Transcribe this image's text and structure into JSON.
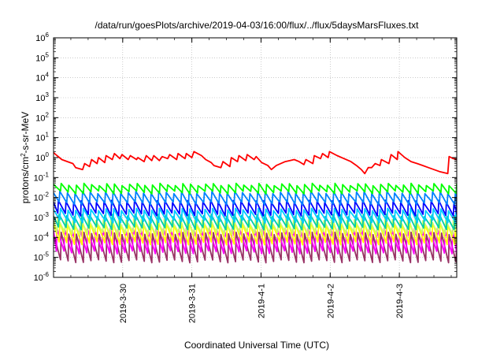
{
  "chart_data": {
    "type": "line",
    "title": "/data/run/goesPlots/archive/2019-04-03/16:00/flux/../flux/5daysMarsFluxes.txt",
    "xlabel": "Coordinated Universal Time (UTC)",
    "ylabel": {
      "base": "protons/cm",
      "sup": "2",
      "rest": "-s-sr-MeV"
    },
    "x_range_days": [
      0,
      5.83
    ],
    "x_ticks": [
      {
        "label": "2019-3-30",
        "day": 1.0
      },
      {
        "label": "2019-3-31",
        "day": 2.0
      },
      {
        "label": "2019-4-1",
        "day": 3.0
      },
      {
        "label": "2019-4-2",
        "day": 4.0
      },
      {
        "label": "2019-4-3",
        "day": 5.0
      }
    ],
    "y_scale": "log",
    "y_range_exp": [
      -6,
      6
    ],
    "y_ticks_exp": [
      -6,
      -5,
      -4,
      -3,
      -2,
      -1,
      0,
      1,
      2,
      3,
      4,
      5,
      6
    ],
    "grid": true,
    "red_series": {
      "color": "#ff0000",
      "points": [
        [
          0.0,
          0.25
        ],
        [
          0.05,
          0.1
        ],
        [
          0.12,
          -0.1
        ],
        [
          0.2,
          -0.2
        ],
        [
          0.28,
          -0.3
        ],
        [
          0.32,
          -0.5
        ],
        [
          0.42,
          -0.6
        ],
        [
          0.45,
          -0.3
        ],
        [
          0.52,
          -0.45
        ],
        [
          0.55,
          -0.1
        ],
        [
          0.63,
          -0.3
        ],
        [
          0.65,
          0.0
        ],
        [
          0.74,
          -0.25
        ],
        [
          0.76,
          0.1
        ],
        [
          0.85,
          -0.1
        ],
        [
          0.88,
          0.2
        ],
        [
          0.96,
          -0.05
        ],
        [
          0.99,
          0.15
        ],
        [
          1.08,
          -0.1
        ],
        [
          1.11,
          0.1
        ],
        [
          1.2,
          -0.1
        ],
        [
          1.22,
          0.0
        ],
        [
          1.31,
          -0.2
        ],
        [
          1.34,
          0.1
        ],
        [
          1.42,
          -0.15
        ],
        [
          1.45,
          0.1
        ],
        [
          1.53,
          -0.15
        ],
        [
          1.57,
          0.05
        ],
        [
          1.65,
          -0.05
        ],
        [
          1.68,
          0.15
        ],
        [
          1.78,
          -0.1
        ],
        [
          1.8,
          0.2
        ],
        [
          1.9,
          -0.05
        ],
        [
          1.92,
          0.2
        ],
        [
          2.0,
          0.0
        ],
        [
          2.03,
          0.3
        ],
        [
          2.14,
          0.1
        ],
        [
          2.2,
          -0.1
        ],
        [
          2.28,
          -0.25
        ],
        [
          2.32,
          -0.4
        ],
        [
          2.42,
          -0.5
        ],
        [
          2.45,
          -0.2
        ],
        [
          2.55,
          -0.45
        ],
        [
          2.57,
          0.0
        ],
        [
          2.66,
          -0.2
        ],
        [
          2.68,
          0.1
        ],
        [
          2.78,
          -0.15
        ],
        [
          2.8,
          0.15
        ],
        [
          2.9,
          -0.1
        ],
        [
          2.93,
          0.05
        ],
        [
          3.01,
          -0.25
        ],
        [
          3.1,
          -0.4
        ],
        [
          3.15,
          -0.6
        ],
        [
          3.22,
          -0.4
        ],
        [
          3.35,
          -0.2
        ],
        [
          3.42,
          -0.15
        ],
        [
          3.48,
          -0.1
        ],
        [
          3.55,
          -0.2
        ],
        [
          3.62,
          -0.35
        ],
        [
          3.65,
          -0.1
        ],
        [
          3.75,
          -0.3
        ],
        [
          3.77,
          0.1
        ],
        [
          3.86,
          -0.05
        ],
        [
          3.89,
          0.2
        ],
        [
          3.97,
          0.0
        ],
        [
          3.99,
          0.3
        ],
        [
          4.1,
          0.1
        ],
        [
          4.2,
          -0.05
        ],
        [
          4.3,
          -0.2
        ],
        [
          4.38,
          -0.4
        ],
        [
          4.45,
          -0.6
        ],
        [
          4.5,
          -0.8
        ],
        [
          4.55,
          -0.5
        ],
        [
          4.6,
          -0.5
        ],
        [
          4.65,
          -0.3
        ],
        [
          4.72,
          -0.4
        ],
        [
          4.74,
          -0.1
        ],
        [
          4.85,
          -0.3
        ],
        [
          4.88,
          0.15
        ],
        [
          4.97,
          -0.1
        ],
        [
          4.98,
          0.3
        ],
        [
          5.08,
          0.0
        ],
        [
          5.17,
          -0.2
        ],
        [
          5.26,
          -0.3
        ],
        [
          5.34,
          -0.4
        ],
        [
          5.42,
          -0.5
        ],
        [
          5.5,
          -0.6
        ],
        [
          5.58,
          -0.7
        ],
        [
          5.7,
          -0.8
        ],
        [
          5.72,
          0.05
        ],
        [
          5.78,
          -0.05
        ],
        [
          5.83,
          -0.1
        ]
      ]
    },
    "saw_series": [
      {
        "color": "#00ff00",
        "high": -1.35,
        "low": -1.75,
        "period": 0.11,
        "phase": 0.0,
        "trend": [
          0.0,
          0.0
        ]
      },
      {
        "color": "#0080ff",
        "high": -1.75,
        "low": -2.3,
        "period": 0.11,
        "phase": 0.02,
        "trend": [
          0.0,
          0.0
        ]
      },
      {
        "color": "#0000ff",
        "high": -2.2,
        "low": -2.85,
        "period": 0.11,
        "phase": 0.04,
        "trend": [
          0.0,
          0.0
        ]
      },
      {
        "color": "#00ccff",
        "high": -2.6,
        "low": -3.2,
        "period": 0.11,
        "phase": 0.01,
        "trend": [
          0.0,
          0.0
        ]
      },
      {
        "color": "#00ccaa",
        "high": -2.9,
        "low": -3.55,
        "period": 0.11,
        "phase": 0.03,
        "trend": [
          0.0,
          0.0
        ]
      },
      {
        "color": "#ccff66",
        "high": -3.1,
        "low": -3.8,
        "period": 0.11,
        "phase": 0.05,
        "trend": [
          0.0,
          0.0
        ]
      },
      {
        "color": "#ffff00",
        "high": -3.3,
        "low": -4.3,
        "period": 0.11,
        "phase": 0.02,
        "trend": [
          0.0,
          0.0
        ]
      },
      {
        "color": "#ff00ff",
        "high": -3.6,
        "low": -4.75,
        "period": 0.11,
        "phase": 0.06,
        "trend": [
          0.0,
          0.0
        ]
      },
      {
        "color": "#993366",
        "high": -3.8,
        "low": -5.2,
        "period": 0.11,
        "phase": 0.0,
        "trend": [
          0.0,
          0.0
        ]
      }
    ]
  }
}
